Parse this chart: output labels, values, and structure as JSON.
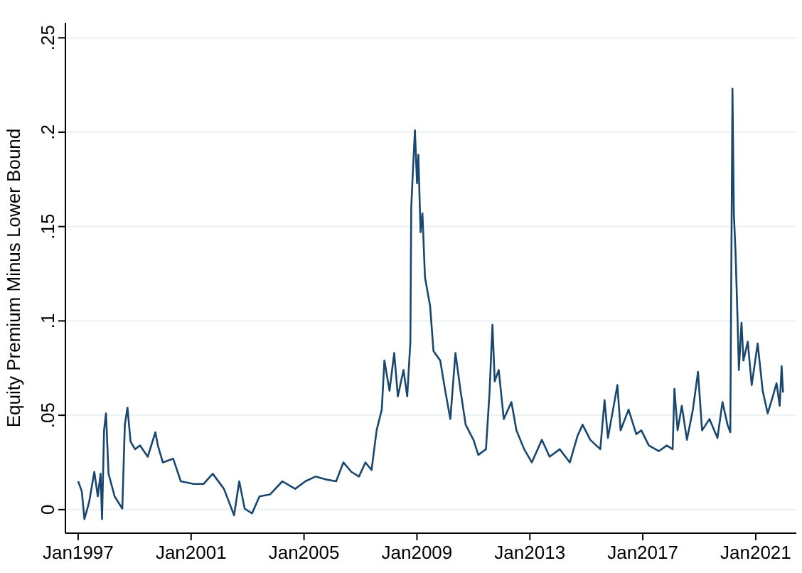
{
  "chart_data": {
    "type": "line",
    "ylabel": "Equity Premium Minus Lower Bound",
    "grid": "y",
    "xlim": [
      "1996-07-20",
      "2022-06-10"
    ],
    "ylim": [
      -0.0125,
      0.258
    ],
    "xticks": [
      {
        "value": "1997-01-01",
        "label": "Jan1997"
      },
      {
        "value": "2001-01-01",
        "label": "Jan2001"
      },
      {
        "value": "2005-01-01",
        "label": "Jan2005"
      },
      {
        "value": "2009-01-01",
        "label": "Jan2009"
      },
      {
        "value": "2013-01-01",
        "label": "Jan2013"
      },
      {
        "value": "2017-01-01",
        "label": "Jan2017"
      },
      {
        "value": "2021-01-01",
        "label": "Jan2021"
      }
    ],
    "yticks": [
      0,
      {
        "value": 0.05,
        "label": ".05"
      },
      {
        "value": 0.1,
        "label": ".1"
      },
      {
        "value": 0.15,
        "label": ".15"
      },
      {
        "value": 0.2,
        "label": ".2"
      },
      {
        "value": 0.25,
        "label": ".25"
      }
    ],
    "x": [
      "1997-01-01",
      "1997-02-17",
      "1997-03-23",
      "1997-05-23",
      "1997-07-29",
      "1997-09-12",
      "1997-10-18",
      "1997-11-06",
      "1997-12-02",
      "1997-12-27",
      "1998-01-29",
      "1998-04-18",
      "1998-07-26",
      "1998-08-28",
      "1998-10-01",
      "1998-11-10",
      "1999-01-08",
      "1999-03-12",
      "1999-06-20",
      "1999-09-27",
      "1999-10-29",
      "2000-01-01",
      "2000-05-14",
      "2000-08-21",
      "2001-02-03",
      "2001-06-12",
      "2001-10-08",
      "2002-03-02",
      "2002-07-11",
      "2002-09-16",
      "2002-11-25",
      "2003-02-28",
      "2003-06-05",
      "2003-10-18",
      "2004-03-27",
      "2004-09-09",
      "2005-01-19",
      "2005-05-28",
      "2005-10-08",
      "2006-02-21",
      "2006-05-25",
      "2006-09-06",
      "2006-12-13",
      "2007-03-06",
      "2007-05-25",
      "2007-07-29",
      "2007-10-04",
      "2007-11-07",
      "2008-01-12",
      "2008-03-13",
      "2008-04-29",
      "2008-07-11",
      "2008-08-28",
      "2008-10-08",
      "2008-10-19",
      "2008-11-14",
      "2008-12-06",
      "2009-01-02",
      "2009-01-19",
      "2009-02-17",
      "2009-03-13",
      "2009-04-15",
      "2009-06-20",
      "2009-08-03",
      "2009-10-29",
      "2010-01-02",
      "2010-03-09",
      "2010-05-14",
      "2010-07-19",
      "2010-09-23",
      "2011-01-02",
      "2011-03-06",
      "2011-06-13",
      "2011-07-29",
      "2011-09-05",
      "2011-10-04",
      "2011-11-25",
      "2012-01-29",
      "2012-05-07",
      "2012-07-11",
      "2012-10-19",
      "2013-01-26",
      "2013-06-05",
      "2013-09-13",
      "2014-01-22",
      "2014-06-02",
      "2014-09-09",
      "2014-11-14",
      "2015-02-21",
      "2015-07-01",
      "2015-08-25",
      "2015-10-08",
      "2015-12-13",
      "2016-02-07",
      "2016-03-20",
      "2016-07-01",
      "2016-10-08",
      "2016-12-13",
      "2017-03-20",
      "2017-07-29",
      "2017-11-07",
      "2018-01-22",
      "2018-02-14",
      "2018-03-27",
      "2018-05-21",
      "2018-07-26",
      "2018-10-11",
      "2018-12-16",
      "2019-02-07",
      "2019-05-14",
      "2019-08-25",
      "2019-10-29",
      "2020-01-02",
      "2020-02-07",
      "2020-03-06",
      "2020-03-24",
      "2020-04-15",
      "2020-05-10",
      "2020-05-28",
      "2020-07-01",
      "2020-07-26",
      "2020-09-20",
      "2020-11-10",
      "2021-01-26",
      "2021-04-01",
      "2021-06-05",
      "2021-08-10",
      "2021-09-27",
      "2021-11-07",
      "2021-12-02",
      "2021-12-20"
    ],
    "series": [
      {
        "color": "#1a476f",
        "values": [
          0.015,
          0.0097,
          -0.005,
          0.004,
          0.02,
          0.007,
          0.019,
          -0.005,
          0.042,
          0.051,
          0.019,
          0.007,
          0.0005,
          0.045,
          0.054,
          0.036,
          0.032,
          0.034,
          0.028,
          0.041,
          0.034,
          0.025,
          0.027,
          0.015,
          0.0136,
          0.0136,
          0.019,
          0.011,
          -0.003,
          0.015,
          0.0005,
          -0.002,
          0.007,
          0.008,
          0.015,
          0.011,
          0.015,
          0.0175,
          0.016,
          0.015,
          0.025,
          0.02,
          0.0175,
          0.025,
          0.021,
          0.042,
          0.053,
          0.079,
          0.063,
          0.083,
          0.06,
          0.074,
          0.06,
          0.089,
          0.16,
          0.183,
          0.201,
          0.173,
          0.188,
          0.147,
          0.157,
          0.123,
          0.108,
          0.084,
          0.079,
          0.063,
          0.048,
          0.083,
          0.063,
          0.045,
          0.037,
          0.029,
          0.032,
          0.062,
          0.098,
          0.068,
          0.074,
          0.048,
          0.057,
          0.042,
          0.032,
          0.025,
          0.037,
          0.028,
          0.032,
          0.025,
          0.039,
          0.045,
          0.037,
          0.032,
          0.058,
          0.038,
          0.053,
          0.066,
          0.042,
          0.053,
          0.04,
          0.042,
          0.034,
          0.031,
          0.034,
          0.032,
          0.064,
          0.042,
          0.055,
          0.037,
          0.053,
          0.073,
          0.042,
          0.048,
          0.038,
          0.057,
          0.045,
          0.041,
          0.223,
          0.157,
          0.136,
          0.102,
          0.074,
          0.099,
          0.079,
          0.089,
          0.066,
          0.088,
          0.063,
          0.051,
          0.06,
          0.067,
          0.055,
          0.076,
          0.062
        ]
      }
    ]
  }
}
